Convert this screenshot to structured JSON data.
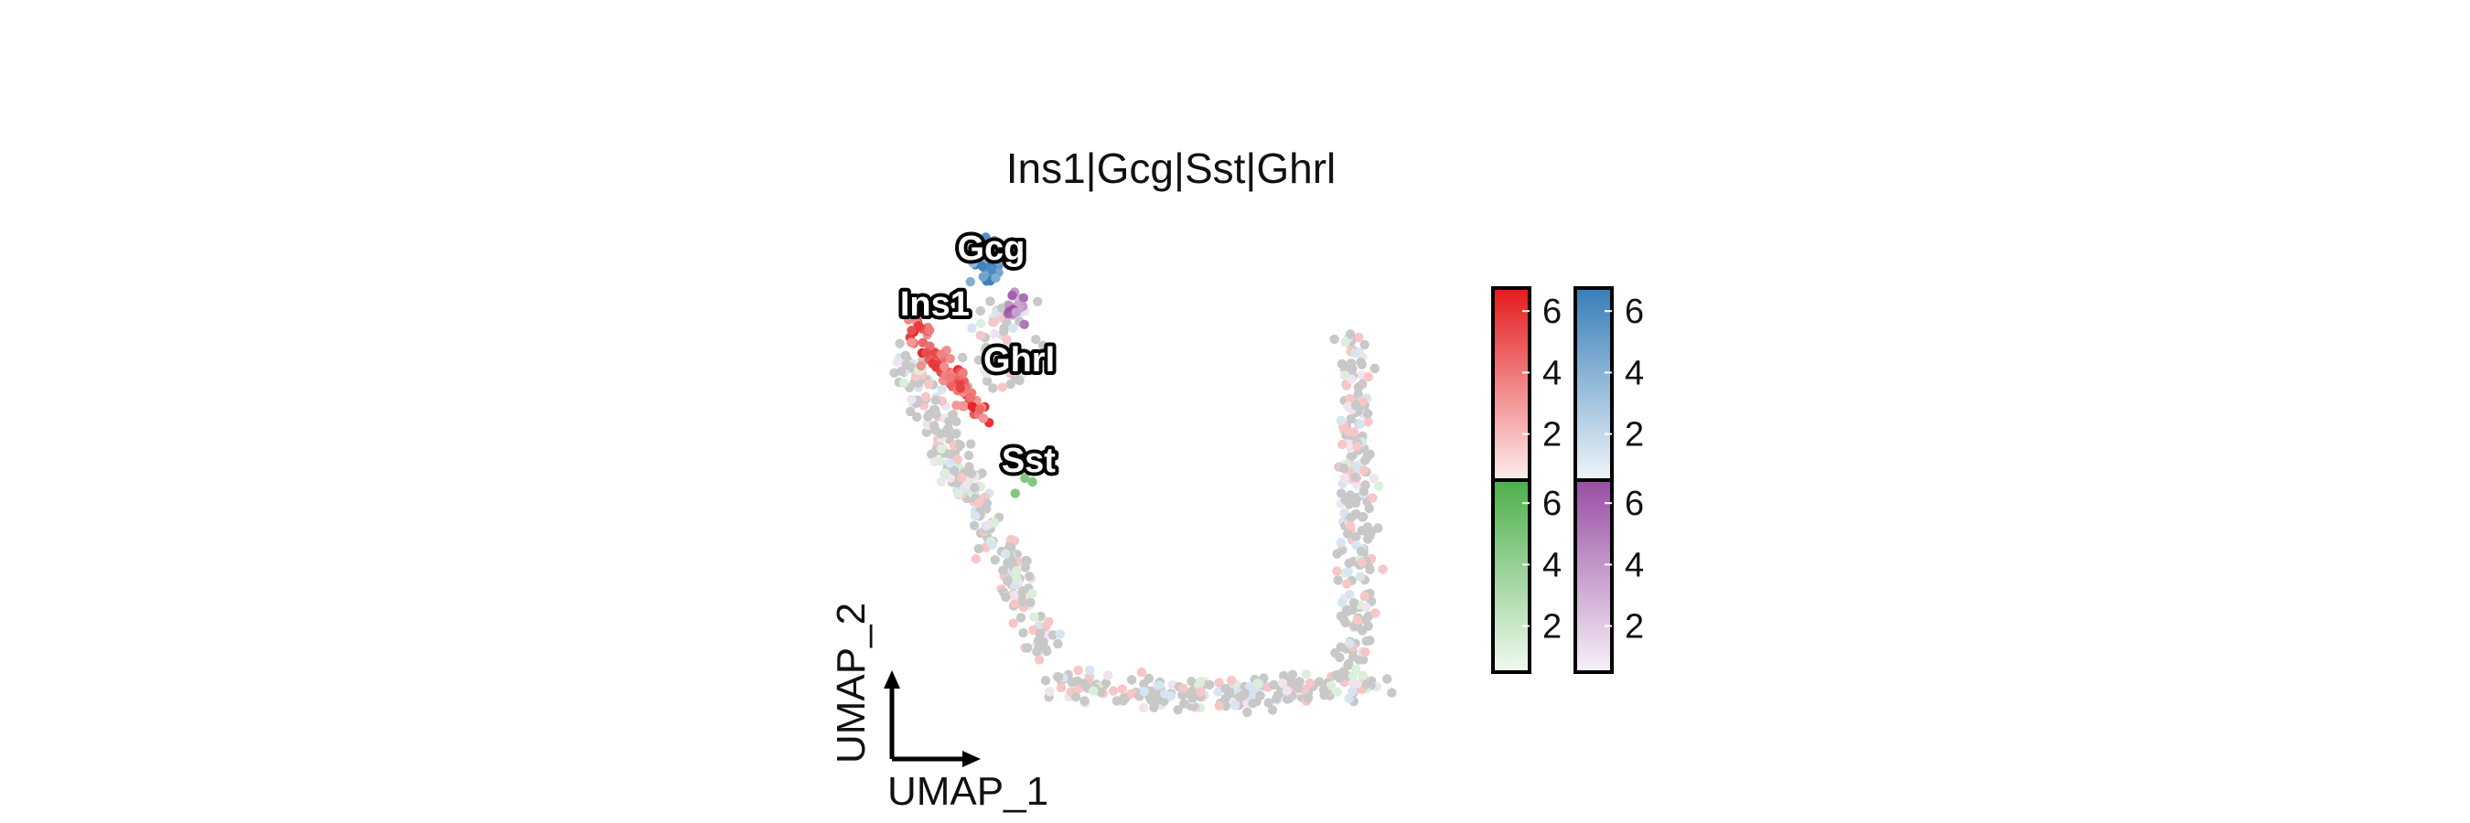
{
  "chart_data": {
    "type": "scatter",
    "title": "Ins1|Gcg|Sst|Ghrl",
    "xlabel": "UMAP_1",
    "ylabel": "UMAP_2",
    "colors": {
      "background": "#c8c8c8",
      "Ins1": "#e41a1c",
      "Gcg": "#377eb8",
      "Sst": "#4daf4a",
      "Ghrl": "#984ea3"
    },
    "labels": [
      {
        "text": "Gcg",
        "x": 0.2,
        "y": 4.3
      },
      {
        "text": "Ins1",
        "x": -1.0,
        "y": 2.8
      },
      {
        "text": "Ghrl",
        "x": 0.8,
        "y": 1.3
      },
      {
        "text": "Sst",
        "x": 1.0,
        "y": -1.4
      }
    ],
    "legend": [
      {
        "gene": "Ins1",
        "color": "#e41a1c",
        "ticks": [
          "6",
          "4",
          "2"
        ]
      },
      {
        "gene": "Gcg",
        "color": "#377eb8",
        "ticks": [
          "6",
          "4",
          "2"
        ]
      },
      {
        "gene": "Sst",
        "color": "#4daf4a",
        "ticks": [
          "6",
          "4",
          "2"
        ]
      },
      {
        "gene": "Ghrl",
        "color": "#984ea3",
        "ticks": [
          "6",
          "4",
          "2"
        ]
      }
    ],
    "legend_placement": "right",
    "grid": false
  }
}
